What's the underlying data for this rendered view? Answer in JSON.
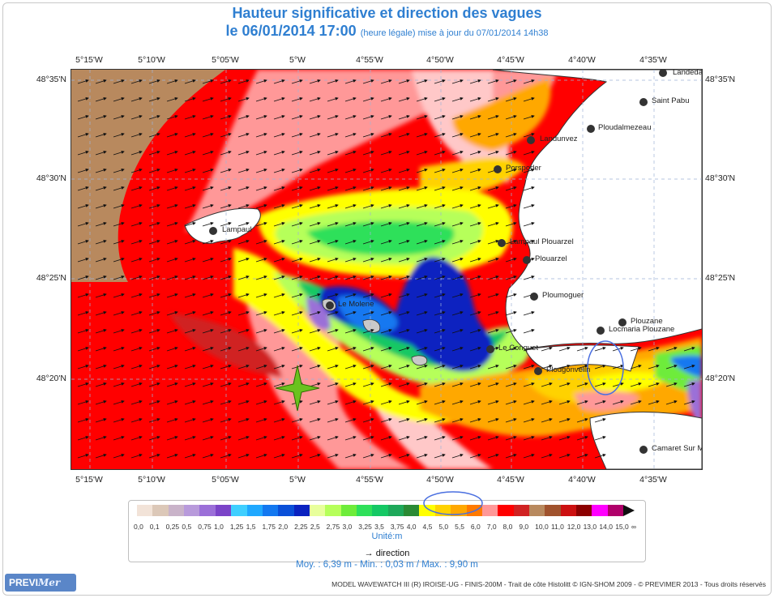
{
  "title": "Hauteur significative et direction des vagues",
  "subtitle": {
    "date": "le 06/01/2014 17:00",
    "note": "(heure légale) mise à jour du 07/01/2014 14h38"
  },
  "lon_labels_top": [
    "5°15'W",
    "5°10'W",
    "5°05'W",
    "5°W",
    "4°55'W",
    "4°50'W",
    "4°45'W",
    "4°40'W",
    "4°35'W"
  ],
  "lon_labels_bottom": [
    "5°15'W",
    "5°10'W",
    "5°05'W",
    "5°W",
    "4°55'W",
    "4°50'W",
    "4°45'W",
    "4°40'W",
    "4°35'W"
  ],
  "lat_labels_left": [
    "48°35'N",
    "48°30'N",
    "48°25'N",
    "48°20'N"
  ],
  "lat_labels_right": [
    "48°35'N",
    "48°30'N",
    "48°25'N",
    "48°20'N"
  ],
  "places": [
    "Landeda",
    "Saint Pabu",
    "Ploudalmezeau",
    "Landunvez",
    "Porspoder",
    "Lampaul",
    "Lampaul Plouarzel",
    "Plouarzel",
    "Ploumoguer",
    "Plouzane",
    "Locmaria Plouzane",
    "Le Conquet",
    "Plougonvelin",
    "Le Molene",
    "Camaret Sur Mer"
  ],
  "legend": {
    "values": [
      "0,0",
      "0,1",
      "0,25",
      "0,5",
      "0,75",
      "1,0",
      "1,25",
      "1,5",
      "1,75",
      "2,0",
      "2,25",
      "2,5",
      "2,75",
      "3,0",
      "3,25",
      "3,5",
      "3,75",
      "4,0",
      "4,5",
      "5,0",
      "5,5",
      "6,0",
      "7,0",
      "8,0",
      "9,0",
      "10,0",
      "11,0",
      "12,0",
      "13,0",
      "14,0",
      "15,0",
      "∞"
    ],
    "colors": [
      "#f2e3d8",
      "#dcc8b8",
      "#c9b3c9",
      "#b89adb",
      "#9b6fd8",
      "#7b44c8",
      "#3fcfff",
      "#1fa8ff",
      "#1378f0",
      "#0a4fd8",
      "#0a22c0",
      "#e8ff9c",
      "#b6ff5a",
      "#6eec3a",
      "#2ee05a",
      "#14c864",
      "#1ea85a",
      "#2a8a34",
      "#ffff00",
      "#ffd200",
      "#ffa800",
      "#ff7a00",
      "#ff9898",
      "#ff0000",
      "#d02222",
      "#b8895e",
      "#a0522d",
      "#cc1010",
      "#8c0000",
      "#ff00ff",
      "#b0006a"
    ],
    "unit": "Unité:m",
    "direction": "direction"
  },
  "stats": "Moy. : 6,39 m   -   Min. : 0,03 m / Max. : 9,90 m",
  "logo": {
    "prefix": "PREVI",
    "suffix": "Mer"
  },
  "credit": "MODEL WAVEWATCH III (R) IROISE-UG - FINIS-200M - Trait de côte Histolitt © IGN-SHOM 2009 - © PREVIMER 2013 - Tous droits réservés",
  "icons": [
    "star-marker-icon",
    "direction-arrow-icon"
  ]
}
